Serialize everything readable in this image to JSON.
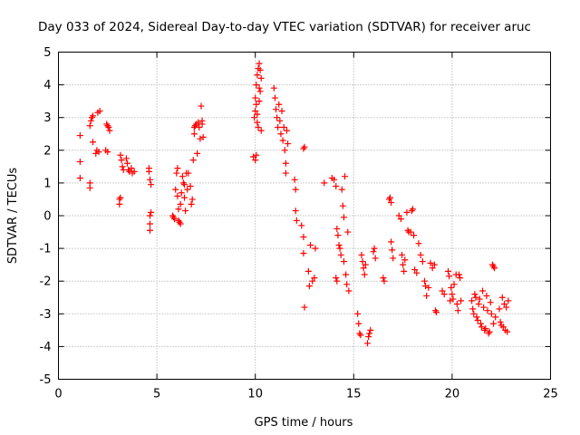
{
  "chart_data": {
    "type": "scatter",
    "title": "Day 033 of 2024, Sidereal Day-to-day VTEC variation (SDTVAR) for receiver aruc",
    "xlabel": "GPS time / hours",
    "ylabel": "SDTVAR / TECUs",
    "xlim": [
      0,
      25
    ],
    "ylim": [
      -5,
      5
    ],
    "xticks": [
      0,
      5,
      10,
      15,
      20,
      25
    ],
    "yticks": [
      -5,
      -4,
      -3,
      -2,
      -1,
      0,
      1,
      2,
      3,
      4,
      5
    ],
    "grid": true,
    "marker": "+",
    "color": "#ff0000",
    "series": [
      {
        "name": "SDTVAR",
        "points": [
          [
            1.1,
            2.45
          ],
          [
            1.1,
            1.65
          ],
          [
            1.1,
            1.15
          ],
          [
            1.6,
            2.75
          ],
          [
            1.65,
            2.9
          ],
          [
            1.7,
            3.0
          ],
          [
            1.75,
            3.05
          ],
          [
            1.6,
            1.0
          ],
          [
            1.6,
            0.85
          ],
          [
            1.75,
            2.25
          ],
          [
            1.9,
            1.9
          ],
          [
            1.95,
            2.0
          ],
          [
            2.0,
            3.15
          ],
          [
            2.1,
            3.2
          ],
          [
            2.05,
            1.95
          ],
          [
            2.4,
            2.0
          ],
          [
            2.45,
            2.8
          ],
          [
            2.5,
            2.75
          ],
          [
            2.55,
            2.7
          ],
          [
            2.6,
            2.6
          ],
          [
            2.5,
            1.95
          ],
          [
            3.1,
            0.35
          ],
          [
            3.1,
            0.5
          ],
          [
            3.15,
            0.55
          ],
          [
            3.15,
            1.85
          ],
          [
            3.2,
            1.7
          ],
          [
            3.25,
            1.5
          ],
          [
            3.3,
            1.4
          ],
          [
            3.45,
            1.75
          ],
          [
            3.5,
            1.6
          ],
          [
            3.55,
            1.4
          ],
          [
            3.6,
            1.35
          ],
          [
            3.7,
            1.45
          ],
          [
            3.75,
            1.3
          ],
          [
            3.85,
            1.35
          ],
          [
            4.6,
            1.45
          ],
          [
            4.6,
            1.35
          ],
          [
            4.65,
            1.1
          ],
          [
            4.7,
            0.95
          ],
          [
            4.65,
            0.0
          ],
          [
            4.65,
            -0.25
          ],
          [
            4.65,
            -0.45
          ],
          [
            4.7,
            0.1
          ],
          [
            5.8,
            0.0
          ],
          [
            5.85,
            -0.05
          ],
          [
            5.9,
            -0.1
          ],
          [
            5.95,
            0.8
          ],
          [
            6.0,
            1.3
          ],
          [
            6.05,
            1.45
          ],
          [
            6.05,
            0.6
          ],
          [
            6.1,
            0.2
          ],
          [
            6.1,
            -0.15
          ],
          [
            6.15,
            -0.2
          ],
          [
            6.2,
            -0.25
          ],
          [
            6.2,
            0.35
          ],
          [
            6.25,
            0.7
          ],
          [
            6.3,
            1.2
          ],
          [
            6.35,
            1.0
          ],
          [
            6.4,
            0.95
          ],
          [
            6.4,
            0.55
          ],
          [
            6.45,
            0.15
          ],
          [
            6.5,
            1.3
          ],
          [
            6.55,
            0.8
          ],
          [
            6.6,
            1.3
          ],
          [
            6.7,
            0.9
          ],
          [
            6.75,
            0.35
          ],
          [
            6.8,
            0.5
          ],
          [
            6.85,
            1.7
          ],
          [
            6.9,
            2.5
          ],
          [
            6.9,
            2.7
          ],
          [
            6.95,
            2.75
          ],
          [
            7.0,
            2.8
          ],
          [
            7.05,
            1.9
          ],
          [
            7.1,
            2.85
          ],
          [
            7.15,
            2.7
          ],
          [
            7.2,
            2.35
          ],
          [
            7.25,
            3.35
          ],
          [
            7.3,
            2.9
          ],
          [
            7.35,
            2.4
          ],
          [
            7.3,
            2.8
          ],
          [
            9.9,
            1.8
          ],
          [
            9.95,
            3.0
          ],
          [
            10.0,
            3.2
          ],
          [
            10.0,
            3.6
          ],
          [
            10.05,
            4.0
          ],
          [
            10.05,
            3.4
          ],
          [
            10.1,
            4.3
          ],
          [
            10.1,
            2.85
          ],
          [
            10.15,
            4.5
          ],
          [
            10.15,
            2.7
          ],
          [
            10.2,
            4.65
          ],
          [
            10.2,
            3.9
          ],
          [
            10.25,
            4.45
          ],
          [
            10.3,
            4.2
          ],
          [
            10.3,
            2.6
          ],
          [
            10.0,
            1.7
          ],
          [
            10.05,
            1.85
          ],
          [
            10.1,
            3.1
          ],
          [
            10.2,
            3.5
          ],
          [
            10.25,
            3.8
          ],
          [
            10.95,
            3.9
          ],
          [
            11.0,
            3.6
          ],
          [
            11.05,
            3.25
          ],
          [
            11.1,
            3.0
          ],
          [
            11.15,
            2.7
          ],
          [
            11.2,
            3.4
          ],
          [
            11.25,
            2.9
          ],
          [
            11.3,
            2.5
          ],
          [
            11.35,
            3.2
          ],
          [
            11.4,
            2.3
          ],
          [
            11.45,
            2.7
          ],
          [
            11.5,
            2.0
          ],
          [
            11.55,
            1.3
          ],
          [
            11.55,
            1.6
          ],
          [
            11.6,
            2.6
          ],
          [
            11.65,
            2.2
          ],
          [
            12.0,
            1.1
          ],
          [
            12.05,
            0.8
          ],
          [
            12.05,
            0.15
          ],
          [
            12.1,
            -0.15
          ],
          [
            12.35,
            -0.3
          ],
          [
            12.45,
            -0.65
          ],
          [
            12.5,
            2.1
          ],
          [
            12.45,
            2.05
          ],
          [
            12.45,
            -1.15
          ],
          [
            12.5,
            -2.8
          ],
          [
            12.7,
            -1.7
          ],
          [
            12.75,
            -2.15
          ],
          [
            12.8,
            -0.9
          ],
          [
            12.9,
            -2.0
          ],
          [
            13.0,
            -1.9
          ],
          [
            13.05,
            -1.0
          ],
          [
            13.5,
            1.0
          ],
          [
            13.9,
            1.15
          ],
          [
            14.0,
            1.1
          ],
          [
            14.1,
            0.9
          ],
          [
            14.15,
            -0.4
          ],
          [
            14.2,
            -0.6
          ],
          [
            14.25,
            -0.9
          ],
          [
            14.3,
            -1.0
          ],
          [
            14.35,
            -1.2
          ],
          [
            14.4,
            0.8
          ],
          [
            14.45,
            0.3
          ],
          [
            14.5,
            -0.05
          ],
          [
            14.55,
            1.2
          ],
          [
            14.5,
            -1.4
          ],
          [
            14.6,
            -1.8
          ],
          [
            14.65,
            -2.1
          ],
          [
            14.7,
            -0.5
          ],
          [
            14.1,
            -1.9
          ],
          [
            14.15,
            -2.0
          ],
          [
            14.75,
            -2.3
          ],
          [
            15.2,
            -3.0
          ],
          [
            15.25,
            -3.3
          ],
          [
            15.3,
            -3.6
          ],
          [
            15.35,
            -3.65
          ],
          [
            15.4,
            -1.2
          ],
          [
            15.45,
            -1.4
          ],
          [
            15.5,
            -1.6
          ],
          [
            15.55,
            -1.8
          ],
          [
            15.6,
            -1.5
          ],
          [
            15.7,
            -3.9
          ],
          [
            15.75,
            -3.7
          ],
          [
            15.8,
            -3.6
          ],
          [
            15.85,
            -3.5
          ],
          [
            16.0,
            -1.1
          ],
          [
            16.05,
            -1.0
          ],
          [
            16.1,
            -1.3
          ],
          [
            16.5,
            -1.9
          ],
          [
            16.55,
            -2.0
          ],
          [
            16.8,
            0.5
          ],
          [
            16.85,
            0.55
          ],
          [
            16.9,
            0.4
          ],
          [
            16.9,
            -0.8
          ],
          [
            16.95,
            -1.05
          ],
          [
            17.0,
            -1.3
          ],
          [
            17.3,
            0.0
          ],
          [
            17.4,
            -0.1
          ],
          [
            17.45,
            -1.2
          ],
          [
            17.5,
            -1.5
          ],
          [
            17.55,
            -1.7
          ],
          [
            17.6,
            -1.35
          ],
          [
            17.7,
            0.1
          ],
          [
            17.75,
            -0.45
          ],
          [
            17.8,
            -0.5
          ],
          [
            17.9,
            -0.5
          ],
          [
            17.95,
            0.15
          ],
          [
            18.0,
            0.2
          ],
          [
            18.05,
            -0.6
          ],
          [
            18.1,
            -1.65
          ],
          [
            18.2,
            -1.75
          ],
          [
            18.3,
            -0.85
          ],
          [
            18.4,
            -1.2
          ],
          [
            18.5,
            -1.4
          ],
          [
            18.6,
            -2.0
          ],
          [
            18.65,
            -2.15
          ],
          [
            18.7,
            -2.45
          ],
          [
            18.8,
            -2.2
          ],
          [
            18.9,
            -1.45
          ],
          [
            19.0,
            -1.6
          ],
          [
            19.1,
            -1.5
          ],
          [
            19.15,
            -2.9
          ],
          [
            19.2,
            -2.95
          ],
          [
            19.5,
            -2.3
          ],
          [
            19.6,
            -2.4
          ],
          [
            19.8,
            -1.7
          ],
          [
            19.85,
            -1.85
          ],
          [
            19.9,
            -2.6
          ],
          [
            19.95,
            -2.2
          ],
          [
            20.0,
            -2.4
          ],
          [
            20.05,
            -2.55
          ],
          [
            20.1,
            -2.1
          ],
          [
            20.2,
            -1.8
          ],
          [
            20.25,
            -2.7
          ],
          [
            20.3,
            -2.9
          ],
          [
            20.35,
            -1.8
          ],
          [
            20.4,
            -1.9
          ],
          [
            20.45,
            -2.6
          ],
          [
            21.0,
            -2.6
          ],
          [
            21.05,
            -2.85
          ],
          [
            21.1,
            -3.0
          ],
          [
            21.15,
            -2.4
          ],
          [
            21.2,
            -2.5
          ],
          [
            21.25,
            -3.1
          ],
          [
            21.3,
            -3.2
          ],
          [
            21.35,
            -2.7
          ],
          [
            21.4,
            -2.55
          ],
          [
            21.45,
            -3.3
          ],
          [
            21.5,
            -3.4
          ],
          [
            21.55,
            -2.3
          ],
          [
            21.6,
            -2.8
          ],
          [
            21.65,
            -3.5
          ],
          [
            21.7,
            -3.45
          ],
          [
            21.75,
            -2.45
          ],
          [
            21.8,
            -2.9
          ],
          [
            21.85,
            -3.6
          ],
          [
            21.9,
            -3.55
          ],
          [
            21.95,
            -2.65
          ],
          [
            22.0,
            -3.0
          ],
          [
            22.05,
            -1.5
          ],
          [
            22.1,
            -1.55
          ],
          [
            22.1,
            -3.3
          ],
          [
            22.15,
            -1.6
          ],
          [
            22.2,
            -3.1
          ],
          [
            22.4,
            -2.85
          ],
          [
            22.45,
            -3.25
          ],
          [
            22.5,
            -3.35
          ],
          [
            22.55,
            -2.5
          ],
          [
            22.6,
            -3.4
          ],
          [
            22.65,
            -2.7
          ],
          [
            22.7,
            -3.5
          ],
          [
            22.75,
            -2.8
          ],
          [
            22.8,
            -3.55
          ],
          [
            22.85,
            -2.6
          ]
        ]
      }
    ]
  }
}
